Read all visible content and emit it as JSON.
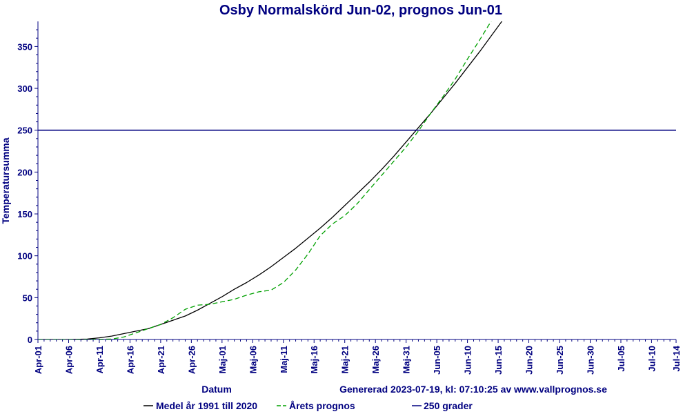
{
  "chart_data": {
    "type": "line",
    "title": "Osby Normalskörd Jun-02, prognos Jun-01",
    "xlabel": "Datum",
    "ylabel": "Temperatursumma",
    "generated": "Genererad 2023-07-19, kl: 07:10:25 av www.vallprognos.se",
    "x_ticks": [
      "Apr-01",
      "Apr-06",
      "Apr-11",
      "Apr-16",
      "Apr-21",
      "Apr-26",
      "Maj-01",
      "Maj-06",
      "Maj-11",
      "Maj-16",
      "Maj-21",
      "Maj-26",
      "Maj-31",
      "Jun-05",
      "Jun-10",
      "Jun-15",
      "Jun-20",
      "Jun-25",
      "Jun-30",
      "Jul-05",
      "Jul-10",
      "Jul-14"
    ],
    "y_ticks": [
      0,
      50,
      100,
      150,
      200,
      250,
      300,
      350
    ],
    "ylim": [
      0,
      380
    ],
    "xlim_days": [
      0,
      104
    ],
    "grid": false,
    "legend_position": "bottom",
    "series": [
      {
        "name": "Medel år 1991 till 2020",
        "color": "#000000",
        "style": "solid",
        "points": [
          [
            0,
            0
          ],
          [
            5,
            0
          ],
          [
            8,
            0.5
          ],
          [
            10,
            2
          ],
          [
            12,
            4
          ],
          [
            14,
            7
          ],
          [
            16,
            10
          ],
          [
            18,
            13
          ],
          [
            20,
            18
          ],
          [
            22,
            23
          ],
          [
            24,
            28
          ],
          [
            26,
            35
          ],
          [
            28,
            43
          ],
          [
            30,
            51
          ],
          [
            32,
            60
          ],
          [
            34,
            68
          ],
          [
            36,
            77
          ],
          [
            38,
            87
          ],
          [
            40,
            98
          ],
          [
            42,
            109
          ],
          [
            44,
            121
          ],
          [
            46,
            133
          ],
          [
            48,
            146
          ],
          [
            50,
            160
          ],
          [
            52,
            174
          ],
          [
            54,
            188
          ],
          [
            56,
            203
          ],
          [
            58,
            219
          ],
          [
            60,
            236
          ],
          [
            62,
            253
          ],
          [
            64,
            270
          ],
          [
            66,
            288
          ],
          [
            68,
            306
          ],
          [
            70,
            325
          ],
          [
            72,
            344
          ],
          [
            74,
            364
          ],
          [
            76,
            384
          ]
        ]
      },
      {
        "name": "Årets prognos",
        "color": "#00a000",
        "style": "dashed",
        "points": [
          [
            0,
            0
          ],
          [
            8,
            0
          ],
          [
            12,
            0.5
          ],
          [
            14,
            3
          ],
          [
            16,
            8
          ],
          [
            18,
            13
          ],
          [
            20,
            18
          ],
          [
            22,
            26
          ],
          [
            24,
            36
          ],
          [
            26,
            41
          ],
          [
            28,
            42
          ],
          [
            30,
            45
          ],
          [
            32,
            48
          ],
          [
            34,
            53
          ],
          [
            36,
            57
          ],
          [
            38,
            59
          ],
          [
            40,
            68
          ],
          [
            42,
            83
          ],
          [
            44,
            102
          ],
          [
            46,
            124
          ],
          [
            48,
            138
          ],
          [
            50,
            148
          ],
          [
            52,
            162
          ],
          [
            54,
            179
          ],
          [
            56,
            196
          ],
          [
            58,
            213
          ],
          [
            60,
            230
          ],
          [
            62,
            249
          ],
          [
            64,
            270
          ],
          [
            66,
            290
          ],
          [
            68,
            311
          ],
          [
            70,
            335
          ],
          [
            72,
            358
          ],
          [
            74,
            382
          ]
        ]
      },
      {
        "name": "250 grader",
        "color": "#000080",
        "style": "solid",
        "points": [
          [
            0,
            250
          ],
          [
            104,
            250
          ]
        ]
      }
    ]
  }
}
